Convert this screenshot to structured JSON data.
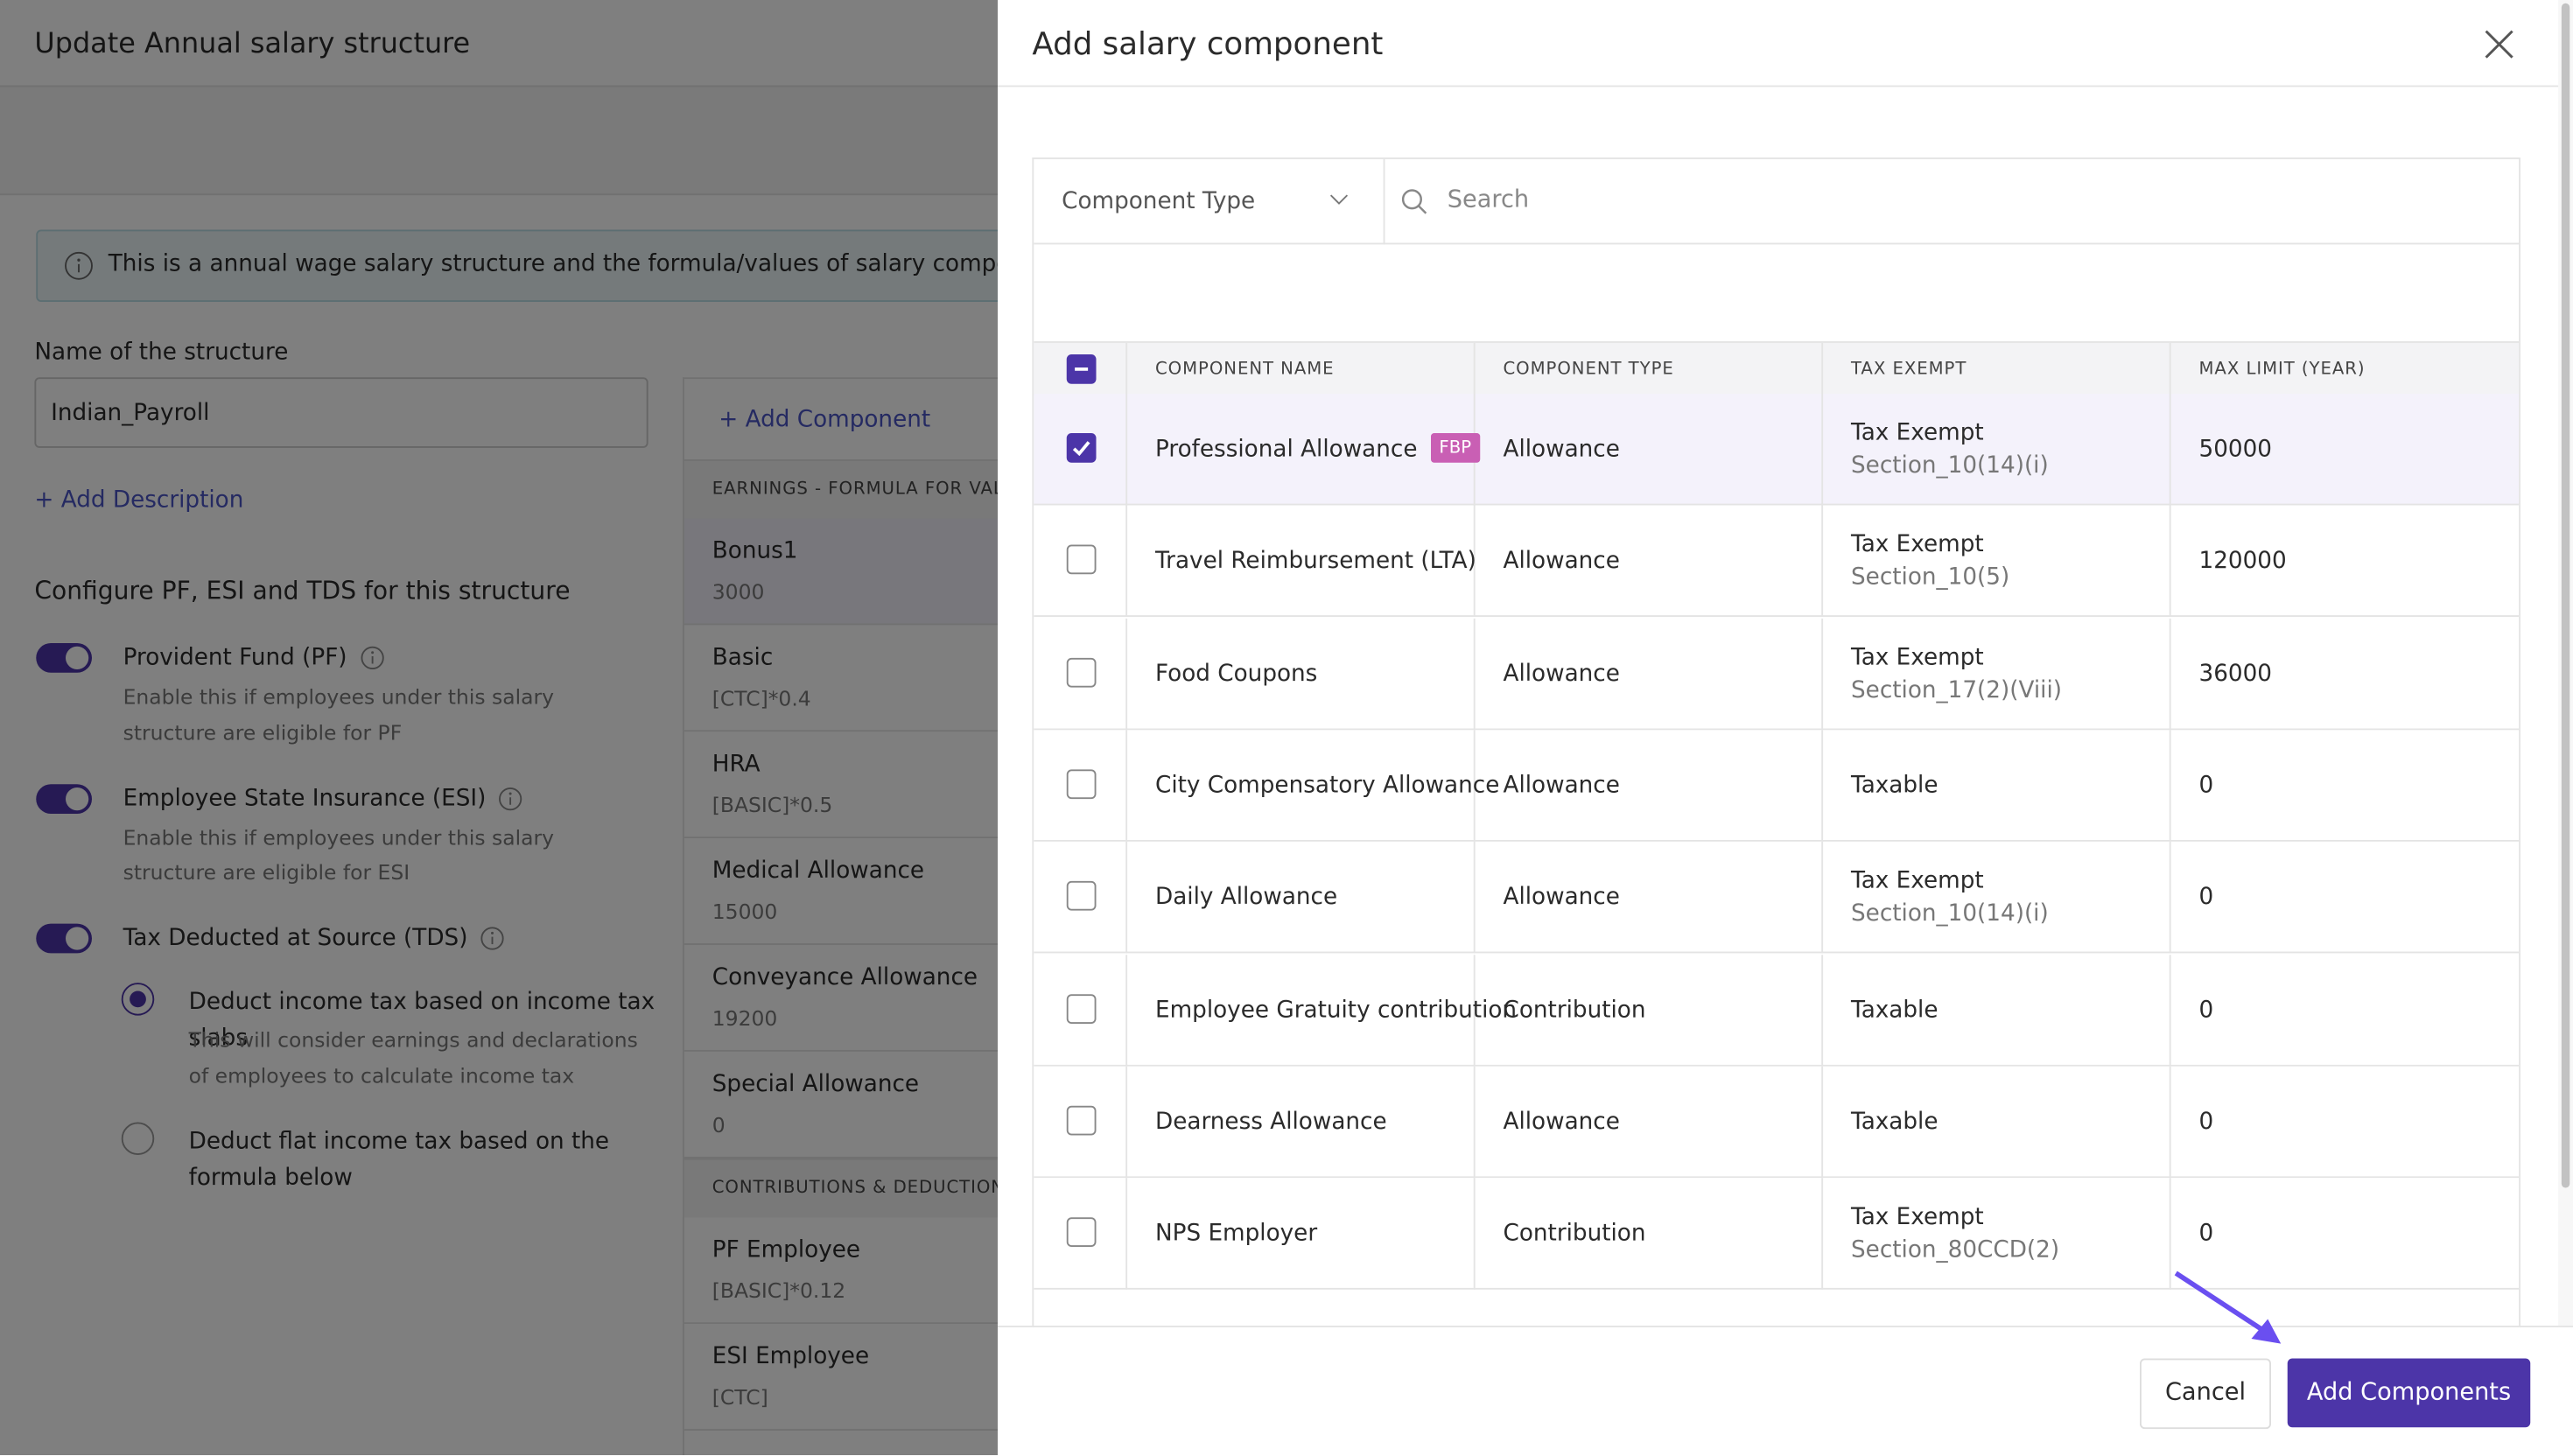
{
  "page": {
    "title": "Update Annual salary structure",
    "info": "This is a annual wage salary structure and the formula/values of salary components should",
    "name_label": "Name of the structure",
    "name_value": "Indian_Payroll",
    "add_description": "+ Add Description",
    "configure_title": "Configure PF, ESI and TDS for this structure",
    "toggles": [
      {
        "label": "Provident Fund (PF)",
        "description": "Enable this if employees under this salary structure are eligible for PF"
      },
      {
        "label": "Employee State Insurance (ESI)",
        "description": "Enable this if employees under this salary structure are eligible for ESI"
      },
      {
        "label": "Tax Deducted at Source (TDS)"
      }
    ],
    "radios": [
      {
        "label": "Deduct income tax based on income tax slabs",
        "description": "This will consider earnings and declarations of employees to calculate income tax"
      },
      {
        "label": "Deduct flat income tax based on the formula below"
      }
    ],
    "add_component": "+ Add Component",
    "sections": [
      {
        "title": "EARNINGS - FORMULA FOR VALU",
        "items": [
          {
            "name": "Bonus1",
            "value": "3000"
          },
          {
            "name": "Basic",
            "value": "[CTC]*0.4"
          },
          {
            "name": "HRA",
            "value": "[BASIC]*0.5"
          },
          {
            "name": "Medical Allowance",
            "value": "15000"
          },
          {
            "name": "Conveyance Allowance",
            "value": "19200"
          },
          {
            "name": "Special Allowance",
            "value": "0"
          }
        ]
      },
      {
        "title": "CONTRIBUTIONS & DEDUCTIONS",
        "items": [
          {
            "name": "PF Employee",
            "value": "[BASIC]*0.12"
          },
          {
            "name": "ESI Employee",
            "value": "[CTC]"
          }
        ]
      }
    ]
  },
  "modal": {
    "title": "Add salary component",
    "filter_type": "Component Type",
    "search": "Search",
    "columns": [
      "COMPONENT NAME",
      "COMPONENT TYPE",
      "TAX EXEMPT",
      "MAX LIMIT (YEAR)"
    ],
    "rows": [
      {
        "name": "Professional Allowance",
        "badge": "FBP",
        "type": "Allowance",
        "tax": "Tax Exempt",
        "section": "Section_10(14)(i)",
        "max": "50000",
        "checked": true
      },
      {
        "name": "Travel Reimbursement (LTA)",
        "type": "Allowance",
        "tax": "Tax Exempt",
        "section": "Section_10(5)",
        "max": "120000",
        "checked": false
      },
      {
        "name": "Food Coupons",
        "type": "Allowance",
        "tax": "Tax Exempt",
        "section": "Section_17(2)(Viii)",
        "max": "36000",
        "checked": false
      },
      {
        "name": "City Compensatory Allowance",
        "type": "Allowance",
        "tax": "Taxable",
        "max": "0",
        "checked": false
      },
      {
        "name": "Daily Allowance",
        "type": "Allowance",
        "tax": "Tax Exempt",
        "section": "Section_10(14)(i)",
        "max": "0",
        "checked": false
      },
      {
        "name": "Employee Gratuity contribution",
        "type": "Contribution",
        "tax": "Taxable",
        "max": "0",
        "checked": false
      },
      {
        "name": "Dearness Allowance",
        "type": "Allowance",
        "tax": "Taxable",
        "max": "0",
        "checked": false
      },
      {
        "name": "NPS Employer",
        "type": "Contribution",
        "tax": "Tax Exempt",
        "section": "Section_80CCD(2)",
        "max": "0",
        "checked": false
      }
    ],
    "cancel": "Cancel",
    "submit": "Add Components"
  }
}
